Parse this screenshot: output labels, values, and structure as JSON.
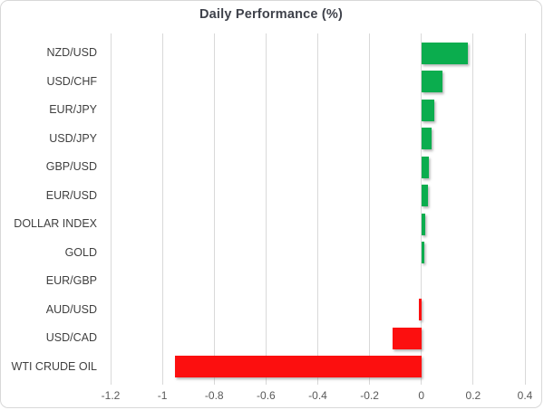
{
  "chart": {
    "title": "Daily Performance (%)"
  },
  "chart_data": {
    "type": "bar",
    "orientation": "horizontal",
    "title": "Daily Performance (%)",
    "xlabel": "",
    "ylabel": "",
    "categories": [
      "NZD/USD",
      "USD/CHF",
      "EUR/JPY",
      "USD/JPY",
      "GBP/USD",
      "EUR/USD",
      "DOLLAR INDEX",
      "GOLD",
      "EUR/GBP",
      "AUD/USD",
      "USD/CAD",
      "WTI CRUDE OIL"
    ],
    "values": [
      0.18,
      0.08,
      0.05,
      0.04,
      0.03,
      0.025,
      0.015,
      0.01,
      0.0,
      -0.01,
      -0.11,
      -0.95
    ],
    "xlim": [
      -1.2,
      0.4
    ],
    "xtick_values": [
      -1.2,
      -1,
      -0.8,
      -0.6,
      -0.4,
      -0.2,
      0,
      0.2,
      0.4
    ],
    "xtick_labels": [
      "-1.2",
      "-1",
      "-0.8",
      "-0.6",
      "-0.4",
      "-0.2",
      "0",
      "0.2",
      "0.4"
    ],
    "grid": "vertical-only",
    "legend": false,
    "colors": {
      "positive": "#0bad4e",
      "negative": "#fc0f0f",
      "gridline": "#d9d9d9",
      "title_text": "#3f424b",
      "category_text": "#404040",
      "tick_text": "#595959",
      "frame_border": "#d8d8d8"
    }
  }
}
